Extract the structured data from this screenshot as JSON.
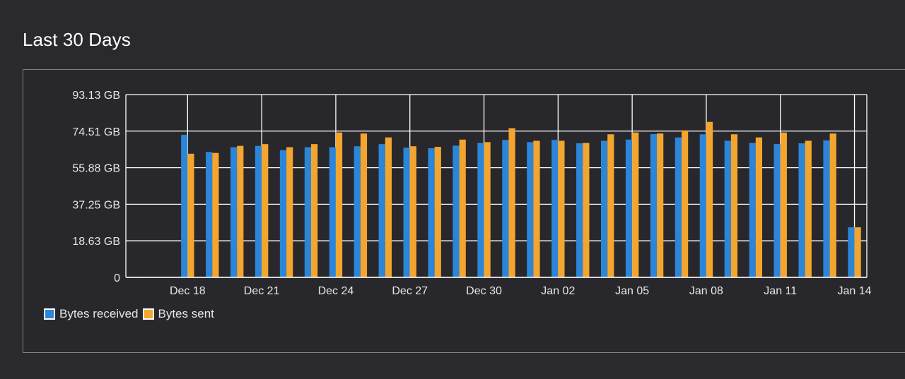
{
  "page": {
    "title": "Last 30 Days"
  },
  "colors": {
    "received": "#2b86d9",
    "sent": "#f4a52e",
    "grid": "#ffffff",
    "axis_text": "#e6e6e6"
  },
  "legend": [
    {
      "label": "Bytes received",
      "color_key": "received"
    },
    {
      "label": "Bytes sent",
      "color_key": "sent"
    }
  ],
  "chart_data": {
    "type": "bar",
    "title": "",
    "xlabel": "",
    "ylabel": "",
    "unit": "GB",
    "ylim": [
      0,
      93.13
    ],
    "y_ticks": [
      0,
      18.63,
      37.25,
      55.88,
      74.51,
      93.13
    ],
    "y_tick_labels": [
      "0",
      "18.63 GB",
      "37.25 GB",
      "55.88 GB",
      "74.51 GB",
      "93.13 GB"
    ],
    "x_tick_labels": [
      "Dec 18",
      "Dec 21",
      "Dec 24",
      "Dec 27",
      "Dec 30",
      "Jan 02",
      "Jan 05",
      "Jan 08",
      "Jan 11",
      "Jan 14"
    ],
    "x_tick_category_index": [
      2,
      5,
      8,
      11,
      14,
      17,
      20,
      23,
      26,
      29
    ],
    "grid": true,
    "legend_position": "bottom-left",
    "categories": [
      "Dec 16",
      "Dec 17",
      "Dec 18",
      "Dec 19",
      "Dec 20",
      "Dec 21",
      "Dec 22",
      "Dec 23",
      "Dec 24",
      "Dec 25",
      "Dec 26",
      "Dec 27",
      "Dec 28",
      "Dec 29",
      "Dec 30",
      "Dec 31",
      "Jan 01",
      "Jan 02",
      "Jan 03",
      "Jan 04",
      "Jan 05",
      "Jan 06",
      "Jan 07",
      "Jan 08",
      "Jan 09",
      "Jan 10",
      "Jan 11",
      "Jan 12",
      "Jan 13",
      "Jan 14"
    ],
    "series": [
      {
        "name": "Bytes received",
        "color_key": "received",
        "values": [
          0.2,
          0.2,
          72.6,
          63.9,
          66.3,
          67.0,
          64.8,
          66.3,
          66.3,
          66.8,
          67.9,
          66.1,
          65.8,
          67.1,
          68.5,
          70.0,
          68.9,
          70.0,
          68.3,
          69.6,
          70.2,
          73.0,
          71.3,
          72.9,
          69.6,
          68.5,
          67.9,
          68.3,
          69.8,
          25.5
        ]
      },
      {
        "name": "Bytes sent",
        "color_key": "sent",
        "values": [
          0.2,
          0.2,
          63.0,
          63.4,
          67.0,
          67.9,
          66.3,
          67.9,
          73.8,
          73.3,
          71.3,
          66.8,
          66.5,
          70.2,
          68.9,
          76.0,
          69.6,
          69.6,
          68.5,
          72.9,
          73.8,
          73.3,
          74.9,
          79.2,
          72.9,
          71.3,
          73.8,
          69.6,
          73.3,
          25.5
        ]
      }
    ]
  }
}
